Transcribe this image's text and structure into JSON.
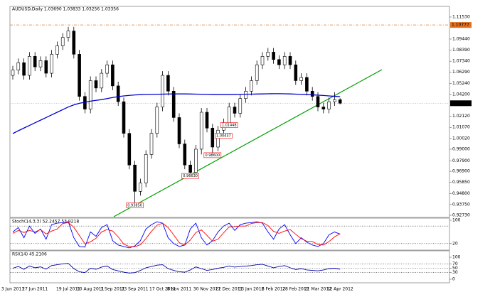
{
  "chart_data": [
    {
      "type": "candlestick",
      "title": "AUDUSD,Daily 1.03690 1.03833 1.03256 1.03356",
      "categories": [
        "3 Jun 2011",
        null,
        null,
        null,
        "27 Jun 2011",
        null,
        null,
        null,
        null,
        null,
        "19 Jul 2011",
        null,
        null,
        null,
        "10 Aug 2011",
        null,
        null,
        null,
        "1 Sep 2011",
        null,
        null,
        null,
        "23 Sep 2011",
        null,
        null,
        null,
        null,
        "17 Oct 2011",
        null,
        null,
        "8 Nov 2011",
        null,
        null,
        null,
        null,
        "30 Nov 2011",
        null,
        null,
        null,
        "22 Dec 2011",
        null,
        null,
        null,
        "13 Jan 2012",
        null,
        null,
        null,
        "6 Feb 2012",
        null,
        null,
        null,
        "28 Feb 2012",
        null,
        null,
        null,
        "21 Mar 2012",
        null,
        null,
        null,
        "12 Apr 2012"
      ],
      "candles": [
        [
          1.06,
          1.069,
          1.056,
          1.065
        ],
        [
          1.065,
          1.076,
          1.061,
          1.072
        ],
        [
          1.072,
          1.076,
          1.056,
          1.06
        ],
        [
          1.06,
          1.082,
          1.056,
          1.078
        ],
        [
          1.078,
          1.082,
          1.064,
          1.068
        ],
        [
          1.068,
          1.078,
          1.064,
          1.074
        ],
        [
          1.074,
          1.078,
          1.058,
          1.062
        ],
        [
          1.062,
          1.084,
          1.058,
          1.08
        ],
        [
          1.08,
          1.092,
          1.076,
          1.088
        ],
        [
          1.088,
          1.1,
          1.084,
          1.096
        ],
        [
          1.096,
          1.106,
          1.092,
          1.102
        ],
        [
          1.102,
          1.106,
          1.076,
          1.08
        ],
        [
          1.08,
          1.084,
          1.036,
          1.04
        ],
        [
          1.04,
          1.044,
          1.024,
          1.028
        ],
        [
          1.028,
          1.059,
          1.024,
          1.055
        ],
        [
          1.055,
          1.059,
          1.044,
          1.048
        ],
        [
          1.048,
          1.066,
          1.044,
          1.062
        ],
        [
          1.062,
          1.074,
          1.058,
          1.07
        ],
        [
          1.07,
          1.074,
          1.046,
          1.05
        ],
        [
          1.05,
          1.054,
          1.031,
          1.035
        ],
        [
          1.035,
          1.039,
          1.001,
          1.005
        ],
        [
          1.005,
          1.009,
          0.971,
          0.975
        ],
        [
          0.975,
          0.979,
          0.9385,
          0.95
        ],
        [
          0.95,
          0.962,
          0.946,
          0.958
        ],
        [
          0.958,
          0.989,
          0.954,
          0.985
        ],
        [
          0.985,
          1.009,
          0.981,
          1.005
        ],
        [
          1.005,
          1.034,
          1.001,
          1.03
        ],
        [
          1.03,
          1.064,
          1.026,
          1.06
        ],
        [
          1.06,
          1.064,
          1.041,
          1.045
        ],
        [
          1.045,
          1.049,
          1.016,
          1.02
        ],
        [
          1.02,
          1.024,
          0.991,
          0.995
        ],
        [
          0.995,
          0.999,
          0.971,
          0.975
        ],
        [
          0.975,
          0.979,
          0.9663,
          0.968
        ],
        [
          0.968,
          0.994,
          0.967,
          0.99
        ],
        [
          0.99,
          1.029,
          0.985,
          1.025
        ],
        [
          1.025,
          1.029,
          1.006,
          1.01
        ],
        [
          1.01,
          1.014,
          0.986,
          0.992
        ],
        [
          0.992,
          1.012,
          0.988,
          1.008
        ],
        [
          1.008,
          1.019,
          1.0044,
          1.015
        ],
        [
          1.015,
          1.034,
          1.0145,
          1.03
        ],
        [
          1.03,
          1.034,
          1.02,
          1.024
        ],
        [
          1.024,
          1.042,
          1.02,
          1.038
        ],
        [
          1.038,
          1.049,
          1.034,
          1.045
        ],
        [
          1.045,
          1.059,
          1.041,
          1.055
        ],
        [
          1.055,
          1.074,
          1.051,
          1.07
        ],
        [
          1.07,
          1.082,
          1.066,
          1.078
        ],
        [
          1.078,
          1.086,
          1.074,
          1.082
        ],
        [
          1.082,
          1.086,
          1.071,
          1.075
        ],
        [
          1.075,
          1.079,
          1.066,
          1.07
        ],
        [
          1.07,
          1.082,
          1.066,
          1.078
        ],
        [
          1.078,
          1.082,
          1.066,
          1.07
        ],
        [
          1.07,
          1.074,
          1.051,
          1.055
        ],
        [
          1.055,
          1.062,
          1.051,
          1.058
        ],
        [
          1.058,
          1.062,
          1.041,
          1.045
        ],
        [
          1.045,
          1.049,
          1.036,
          1.04
        ],
        [
          1.04,
          1.044,
          1.026,
          1.03
        ],
        [
          1.03,
          1.034,
          1.024,
          1.028
        ],
        [
          1.028,
          1.039,
          1.024,
          1.035
        ],
        [
          1.035,
          1.044,
          1.031,
          1.0369
        ],
        [
          1.0369,
          1.03833,
          1.03256,
          1.03356
        ]
      ],
      "close_label": "1.03356",
      "ma": {
        "color": "#0000cc",
        "values": [
          1.0048,
          1.0075,
          1.01,
          1.0125,
          1.015,
          1.0175,
          1.02,
          1.0225,
          1.025,
          1.0275,
          1.03,
          1.032,
          1.0335,
          1.0345,
          1.0355,
          1.0363,
          1.037,
          1.038,
          1.039,
          1.0398,
          1.0405,
          1.041,
          1.0414,
          1.0417,
          1.0419,
          1.042,
          1.0421,
          1.0422,
          1.0423,
          1.0424,
          1.0424,
          1.0424,
          1.0423,
          1.0422,
          1.0421,
          1.042,
          1.0419,
          1.0418,
          1.0418,
          1.0418,
          1.0419,
          1.042,
          1.0421,
          1.0422,
          1.0423,
          1.0424,
          1.0425,
          1.0426,
          1.0426,
          1.0425,
          1.0424,
          1.0422,
          1.042,
          1.0418,
          1.0415,
          1.0412,
          1.0409,
          1.0405,
          1.0401,
          1.0398
        ]
      },
      "hline": {
        "value": 1.10777,
        "label": "1.10777",
        "color": "#e07020"
      },
      "annotations": [
        {
          "value": 0.9385,
          "label": "0.93850"
        },
        {
          "value": 0.9663,
          "label": "0.96630"
        },
        {
          "value": 0.986,
          "label": "0.98600"
        },
        {
          "value": 1.0044,
          "label": "1.00437"
        },
        {
          "value": 1.0145,
          "label": "1.01448"
        }
      ],
      "ylim": [
        0.9253,
        1.1247
      ],
      "yticks": [
        {
          "value": 1.1153,
          "label": "1.11530"
        },
        {
          "value": 1.0944,
          "label": "1.09440"
        },
        {
          "value": 1.0839,
          "label": "1.08390"
        },
        {
          "value": 1.0734,
          "label": "1.07340"
        },
        {
          "value": 1.0629,
          "label": "1.06290"
        },
        {
          "value": 1.0524,
          "label": "1.05240"
        },
        {
          "value": 1.042,
          "label": "1.04200"
        },
        {
          "value": 1.0212,
          "label": "1.02120"
        },
        {
          "value": 1.0107,
          "label": "1.01070"
        },
        {
          "value": 1.0002,
          "label": "1.00020"
        },
        {
          "value": 0.99,
          "label": "0.99000"
        },
        {
          "value": 0.979,
          "label": "0.97900"
        },
        {
          "value": 0.969,
          "label": "0.96900"
        },
        {
          "value": 0.9585,
          "label": "0.95850"
        },
        {
          "value": 0.948,
          "label": "0.94800"
        },
        {
          "value": 0.9375,
          "label": "0.93750"
        },
        {
          "value": 0.9273,
          "label": "0.92730"
        }
      ]
    },
    {
      "type": "line",
      "title": "Stoch(14,3,3) 52.2457 53.9218",
      "series": [
        {
          "color": "#0000ff",
          "values": [
            60,
            75,
            40,
            80,
            55,
            70,
            35,
            85,
            90,
            92,
            95,
            40,
            10,
            8,
            60,
            45,
            75,
            85,
            30,
            15,
            10,
            5,
            12,
            30,
            70,
            85,
            95,
            90,
            40,
            20,
            10,
            15,
            70,
            90,
            40,
            15,
            30,
            60,
            80,
            90,
            65,
            85,
            90,
            92,
            95,
            90,
            60,
            35,
            70,
            85,
            50,
            20,
            40,
            25,
            15,
            10,
            20,
            50,
            60,
            52.2457
          ]
        },
        {
          "color": "#ff0000",
          "values": [
            55,
            65,
            58,
            65,
            60,
            68,
            53,
            63,
            70,
            89,
            92,
            76,
            48,
            19,
            26,
            38,
            60,
            68,
            63,
            43,
            18,
            10,
            9,
            16,
            37,
            62,
            83,
            90,
            75,
            50,
            23,
            15,
            32,
            58,
            67,
            48,
            28,
            35,
            57,
            77,
            78,
            80,
            80,
            89,
            92,
            92,
            82,
            62,
            55,
            63,
            68,
            52,
            37,
            28,
            27,
            17,
            15,
            27,
            43,
            53.9218
          ]
        }
      ],
      "levels": [
        80,
        20
      ],
      "ylim": [
        0,
        100
      ],
      "yticks": [
        100,
        20
      ]
    },
    {
      "type": "line",
      "title": "RSI(14) 45.2106",
      "series": [
        {
          "color": "#0000aa",
          "values": [
            50,
            58,
            45,
            60,
            52,
            56,
            46,
            62,
            66,
            70,
            72,
            48,
            34,
            30,
            50,
            45,
            55,
            60,
            44,
            38,
            32,
            28,
            30,
            40,
            52,
            58,
            64,
            66,
            48,
            40,
            34,
            32,
            42,
            56,
            48,
            40,
            44,
            50,
            54,
            60,
            55,
            58,
            60,
            62,
            66,
            68,
            60,
            52,
            58,
            62,
            52,
            44,
            48,
            42,
            40,
            38,
            42,
            48,
            50,
            45.2106
          ]
        }
      ],
      "levels": [
        70,
        50,
        30
      ],
      "ylim": [
        0,
        100
      ],
      "yticks": [
        100,
        70,
        50,
        30,
        0
      ]
    }
  ]
}
